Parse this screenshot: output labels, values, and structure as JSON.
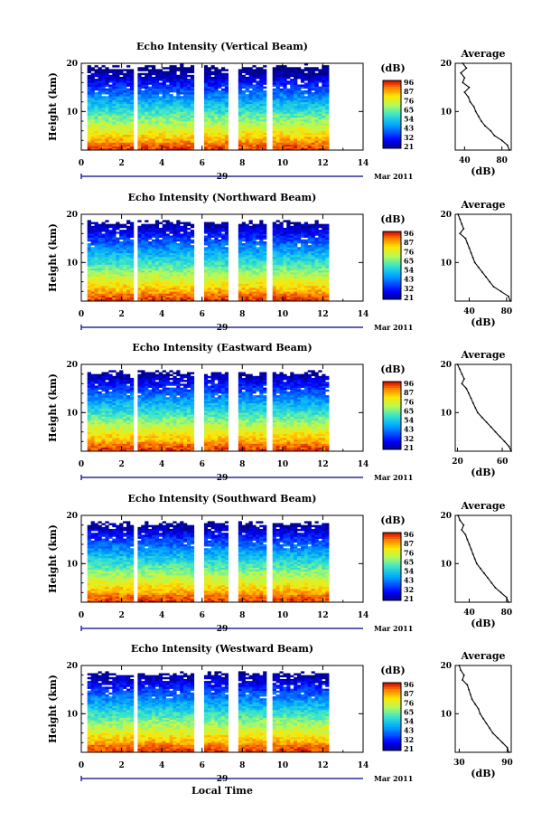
{
  "chart_data": [
    {
      "type": "heatmap",
      "title": "Echo Intensity (Vertical Beam)",
      "ylabel": "Height (km)",
      "xlim": [
        0,
        14
      ],
      "ylim": [
        2,
        20
      ],
      "xticks": [
        "0",
        "2",
        "4",
        "6",
        "8",
        "10",
        "12",
        "14"
      ],
      "yticks": [
        "10",
        "20"
      ],
      "date_day": "29",
      "date_month_year": "Mar 2011",
      "data_segments": [
        [
          0.3,
          2.6
        ],
        [
          2.8,
          5.6
        ],
        [
          6.1,
          7.3
        ],
        [
          7.8,
          9.2
        ],
        [
          9.5,
          12.3
        ]
      ],
      "colorbar": {
        "unit": "(dB)",
        "ticks": [
          "96",
          "87",
          "76",
          "65",
          "54",
          "43",
          "32",
          "21"
        ]
      },
      "average_profile": {
        "title": "Average",
        "xlabel": "(dB)",
        "xticks": [
          "40",
          "80"
        ],
        "xlim": [
          30,
          90
        ],
        "yticks": [
          "10",
          "20"
        ],
        "heights": [
          20,
          19,
          18,
          17,
          16,
          15,
          14,
          13,
          12,
          11,
          10,
          9,
          8,
          7,
          6,
          5,
          4,
          3,
          2
        ],
        "values": [
          38,
          42,
          36,
          40,
          38,
          45,
          40,
          44,
          46,
          50,
          52,
          55,
          58,
          62,
          68,
          72,
          80,
          86,
          88
        ]
      }
    },
    {
      "type": "heatmap",
      "title": "Echo Intensity (Northward Beam)",
      "ylabel": "Height (km)",
      "xlim": [
        0,
        14
      ],
      "ylim": [
        2,
        20
      ],
      "xticks": [
        "0",
        "2",
        "4",
        "6",
        "8",
        "10",
        "12",
        "14"
      ],
      "yticks": [
        "10",
        "20"
      ],
      "date_day": "29",
      "date_month_year": "Mar 2011",
      "data_segments": [
        [
          0.3,
          2.6
        ],
        [
          2.8,
          5.6
        ],
        [
          6.1,
          7.3
        ],
        [
          7.8,
          9.2
        ],
        [
          9.5,
          12.3
        ]
      ],
      "colorbar": {
        "unit": "(dB)",
        "ticks": [
          "96",
          "87",
          "76",
          "65",
          "54",
          "43",
          "32",
          "21"
        ]
      },
      "average_profile": {
        "title": "Average",
        "xlabel": "(dB)",
        "xticks": [
          "40",
          "80"
        ],
        "xlim": [
          25,
          85
        ],
        "yticks": [
          "10",
          "20"
        ],
        "heights": [
          20,
          19,
          18,
          17,
          16,
          15,
          14,
          13,
          12,
          11,
          10,
          9,
          8,
          7,
          6,
          5,
          4,
          3,
          2
        ],
        "values": [
          28,
          30,
          32,
          34,
          30,
          36,
          38,
          40,
          42,
          44,
          46,
          50,
          54,
          58,
          62,
          66,
          74,
          82,
          84
        ]
      }
    },
    {
      "type": "heatmap",
      "title": "Echo Intensity (Eastward Beam)",
      "ylabel": "Height (km)",
      "xlim": [
        0,
        14
      ],
      "ylim": [
        2,
        20
      ],
      "xticks": [
        "0",
        "2",
        "4",
        "6",
        "8",
        "10",
        "12",
        "14"
      ],
      "yticks": [
        "10",
        "20"
      ],
      "date_day": "29",
      "date_month_year": "Mar 2011",
      "data_segments": [
        [
          0.3,
          2.6
        ],
        [
          2.8,
          5.6
        ],
        [
          6.1,
          7.3
        ],
        [
          7.8,
          9.2
        ],
        [
          9.5,
          12.3
        ]
      ],
      "colorbar": {
        "unit": "(dB)",
        "ticks": [
          "96",
          "87",
          "76",
          "65",
          "54",
          "43",
          "32",
          "21"
        ]
      },
      "average_profile": {
        "title": "Average",
        "xlabel": "(dB)",
        "xticks": [
          "20",
          "60"
        ],
        "xlim": [
          18,
          68
        ],
        "yticks": [
          "10",
          "20"
        ],
        "heights": [
          20,
          19,
          18,
          17,
          16,
          15,
          14,
          13,
          12,
          11,
          10,
          9,
          8,
          7,
          6,
          5,
          4,
          3,
          2
        ],
        "values": [
          20,
          22,
          24,
          26,
          24,
          28,
          30,
          32,
          34,
          36,
          38,
          42,
          46,
          50,
          54,
          58,
          62,
          66,
          68
        ]
      }
    },
    {
      "type": "heatmap",
      "title": "Echo Intensity (Southward Beam)",
      "ylabel": "Height (km)",
      "xlim": [
        0,
        14
      ],
      "ylim": [
        2,
        20
      ],
      "xticks": [
        "0",
        "2",
        "4",
        "6",
        "8",
        "10",
        "12",
        "14"
      ],
      "yticks": [
        "10",
        "20"
      ],
      "date_day": "29",
      "date_month_year": "Mar 2011",
      "data_segments": [
        [
          0.3,
          2.6
        ],
        [
          2.8,
          5.6
        ],
        [
          6.1,
          7.3
        ],
        [
          7.8,
          9.2
        ],
        [
          9.5,
          12.3
        ]
      ],
      "colorbar": {
        "unit": "(dB)",
        "ticks": [
          "96",
          "87",
          "76",
          "65",
          "54",
          "43",
          "32",
          "21"
        ]
      },
      "average_profile": {
        "title": "Average",
        "xlabel": "(dB)",
        "xticks": [
          "40",
          "80"
        ],
        "xlim": [
          25,
          85
        ],
        "yticks": [
          "10",
          "20"
        ],
        "heights": [
          20,
          19,
          18,
          17,
          16,
          15,
          14,
          13,
          12,
          11,
          10,
          9,
          8,
          7,
          6,
          5,
          4,
          3,
          2
        ],
        "values": [
          28,
          30,
          34,
          32,
          36,
          38,
          40,
          42,
          44,
          46,
          48,
          52,
          56,
          60,
          64,
          68,
          74,
          80,
          82
        ]
      }
    },
    {
      "type": "heatmap",
      "title": "Echo Intensity (Westward Beam)",
      "ylabel": "Height (km)",
      "xlabel": "Local Time",
      "xlim": [
        0,
        14
      ],
      "ylim": [
        2,
        20
      ],
      "xticks": [
        "0",
        "2",
        "4",
        "6",
        "8",
        "10",
        "12",
        "14"
      ],
      "yticks": [
        "10",
        "20"
      ],
      "date_day": "29",
      "date_month_year": "Mar 2011",
      "data_segments": [
        [
          0.3,
          2.6
        ],
        [
          2.8,
          5.6
        ],
        [
          6.1,
          7.3
        ],
        [
          7.8,
          9.2
        ],
        [
          9.5,
          12.3
        ]
      ],
      "colorbar": {
        "unit": "(dB)",
        "ticks": [
          "96",
          "87",
          "76",
          "65",
          "54",
          "43",
          "32",
          "21"
        ]
      },
      "average_profile": {
        "title": "Average",
        "xlabel": "(dB)",
        "xticks": [
          "30",
          "90"
        ],
        "xlim": [
          25,
          95
        ],
        "yticks": [
          "10",
          "20"
        ],
        "heights": [
          20,
          19,
          18,
          17,
          16,
          15,
          14,
          13,
          12,
          11,
          10,
          9,
          8,
          7,
          6,
          5,
          4,
          3,
          2
        ],
        "values": [
          30,
          32,
          36,
          34,
          40,
          42,
          44,
          46,
          50,
          54,
          56,
          60,
          64,
          68,
          72,
          78,
          84,
          90,
          92
        ]
      }
    }
  ]
}
